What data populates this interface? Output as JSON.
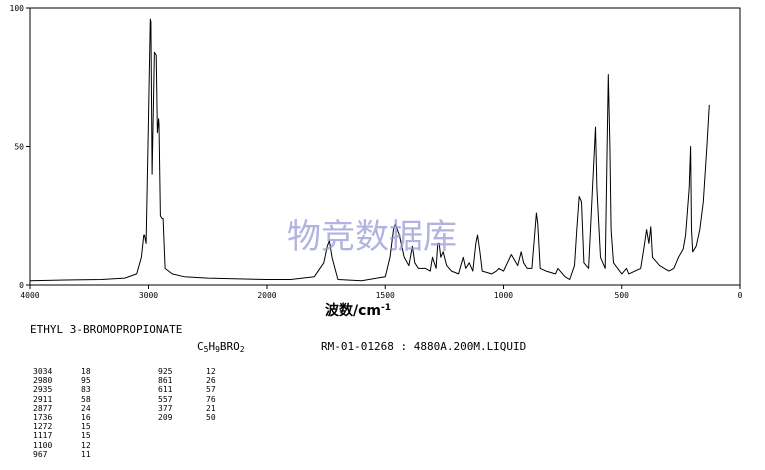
{
  "chart_data": {
    "type": "line",
    "x_axis": {
      "label_cn": "波数",
      "label_unit": "cm",
      "label_exp": "-1",
      "lim": [
        4000,
        0
      ],
      "ticks": [
        "4000",
        "3000",
        "2000",
        "1500",
        "1000",
        "500",
        "0"
      ]
    },
    "y_axis": {
      "lim": [
        0,
        100
      ],
      "ticks": [
        "0",
        "50",
        "100"
      ]
    },
    "series": [
      {
        "points": [
          [
            4000,
            1.5
          ],
          [
            3700,
            1.8
          ],
          [
            3400,
            2
          ],
          [
            3200,
            2.5
          ],
          [
            3100,
            4
          ],
          [
            3060,
            10
          ],
          [
            3040,
            18
          ],
          [
            3034,
            18
          ],
          [
            3020,
            15
          ],
          [
            3000,
            60
          ],
          [
            2985,
            96
          ],
          [
            2980,
            95
          ],
          [
            2970,
            40
          ],
          [
            2950,
            84
          ],
          [
            2935,
            83
          ],
          [
            2925,
            55
          ],
          [
            2915,
            60
          ],
          [
            2911,
            58
          ],
          [
            2900,
            25
          ],
          [
            2885,
            24
          ],
          [
            2877,
            24
          ],
          [
            2860,
            6
          ],
          [
            2800,
            4
          ],
          [
            2700,
            3
          ],
          [
            2500,
            2.5
          ],
          [
            2000,
            2
          ],
          [
            1900,
            2
          ],
          [
            1800,
            3
          ],
          [
            1760,
            8
          ],
          [
            1745,
            14
          ],
          [
            1736,
            16
          ],
          [
            1725,
            10
          ],
          [
            1700,
            2
          ],
          [
            1600,
            1.5
          ],
          [
            1500,
            3
          ],
          [
            1480,
            10
          ],
          [
            1465,
            20
          ],
          [
            1458,
            22
          ],
          [
            1440,
            18
          ],
          [
            1420,
            10
          ],
          [
            1400,
            7
          ],
          [
            1385,
            14
          ],
          [
            1375,
            8
          ],
          [
            1360,
            6
          ],
          [
            1330,
            6
          ],
          [
            1310,
            5
          ],
          [
            1300,
            10
          ],
          [
            1285,
            6
          ],
          [
            1278,
            15
          ],
          [
            1272,
            15
          ],
          [
            1265,
            10
          ],
          [
            1255,
            12
          ],
          [
            1240,
            7
          ],
          [
            1220,
            5
          ],
          [
            1190,
            4
          ],
          [
            1170,
            10
          ],
          [
            1160,
            6
          ],
          [
            1145,
            8
          ],
          [
            1130,
            5
          ],
          [
            1117,
            15
          ],
          [
            1110,
            18
          ],
          [
            1100,
            12
          ],
          [
            1090,
            5
          ],
          [
            1050,
            4
          ],
          [
            1030,
            5
          ],
          [
            1020,
            6
          ],
          [
            1000,
            5
          ],
          [
            967,
            11
          ],
          [
            940,
            7
          ],
          [
            925,
            12
          ],
          [
            915,
            8
          ],
          [
            900,
            6
          ],
          [
            880,
            6
          ],
          [
            861,
            26
          ],
          [
            855,
            22
          ],
          [
            845,
            6
          ],
          [
            820,
            5
          ],
          [
            780,
            4
          ],
          [
            770,
            6
          ],
          [
            740,
            3
          ],
          [
            720,
            2
          ],
          [
            700,
            7
          ],
          [
            690,
            20
          ],
          [
            680,
            32
          ],
          [
            670,
            30
          ],
          [
            660,
            8
          ],
          [
            640,
            6
          ],
          [
            611,
            57
          ],
          [
            605,
            35
          ],
          [
            590,
            10
          ],
          [
            570,
            6
          ],
          [
            557,
            76
          ],
          [
            550,
            50
          ],
          [
            545,
            20
          ],
          [
            535,
            8
          ],
          [
            500,
            4
          ],
          [
            480,
            6
          ],
          [
            470,
            4
          ],
          [
            420,
            6
          ],
          [
            405,
            14
          ],
          [
            395,
            20
          ],
          [
            385,
            15
          ],
          [
            377,
            21
          ],
          [
            370,
            10
          ],
          [
            340,
            7
          ],
          [
            320,
            6
          ],
          [
            300,
            5
          ],
          [
            280,
            6
          ],
          [
            260,
            10
          ],
          [
            240,
            13
          ],
          [
            230,
            18
          ],
          [
            215,
            35
          ],
          [
            209,
            50
          ],
          [
            205,
            20
          ],
          [
            200,
            12
          ],
          [
            185,
            14
          ],
          [
            170,
            20
          ],
          [
            155,
            30
          ],
          [
            140,
            50
          ],
          [
            130,
            65
          ]
        ]
      }
    ],
    "grid": false,
    "watermark": "物竞数据库"
  },
  "info": {
    "compound_name": "ETHYL 3-BROMOPROPIONATE",
    "formula_parts": [
      "C",
      "5",
      "H",
      "9",
      "BRO",
      "2"
    ],
    "source": "RM-01-01268 : 4880A.200M.LIQUID"
  },
  "peak_table": [
    {
      "wn": "3034",
      "t": "18"
    },
    {
      "wn": "2980",
      "t": "95"
    },
    {
      "wn": "2935",
      "t": "83"
    },
    {
      "wn": "2911",
      "t": "58"
    },
    {
      "wn": "2877",
      "t": "24"
    },
    {
      "wn": "1736",
      "t": "16"
    },
    {
      "wn": "1272",
      "t": "15"
    },
    {
      "wn": "1117",
      "t": "15"
    },
    {
      "wn": "1100",
      "t": "12"
    },
    {
      "wn": "967",
      "t": "11"
    },
    {
      "wn": "925",
      "t": "12"
    },
    {
      "wn": "861",
      "t": "26"
    },
    {
      "wn": "611",
      "t": "57"
    },
    {
      "wn": "557",
      "t": "76"
    },
    {
      "wn": "377",
      "t": "21"
    },
    {
      "wn": "209",
      "t": "50"
    }
  ]
}
